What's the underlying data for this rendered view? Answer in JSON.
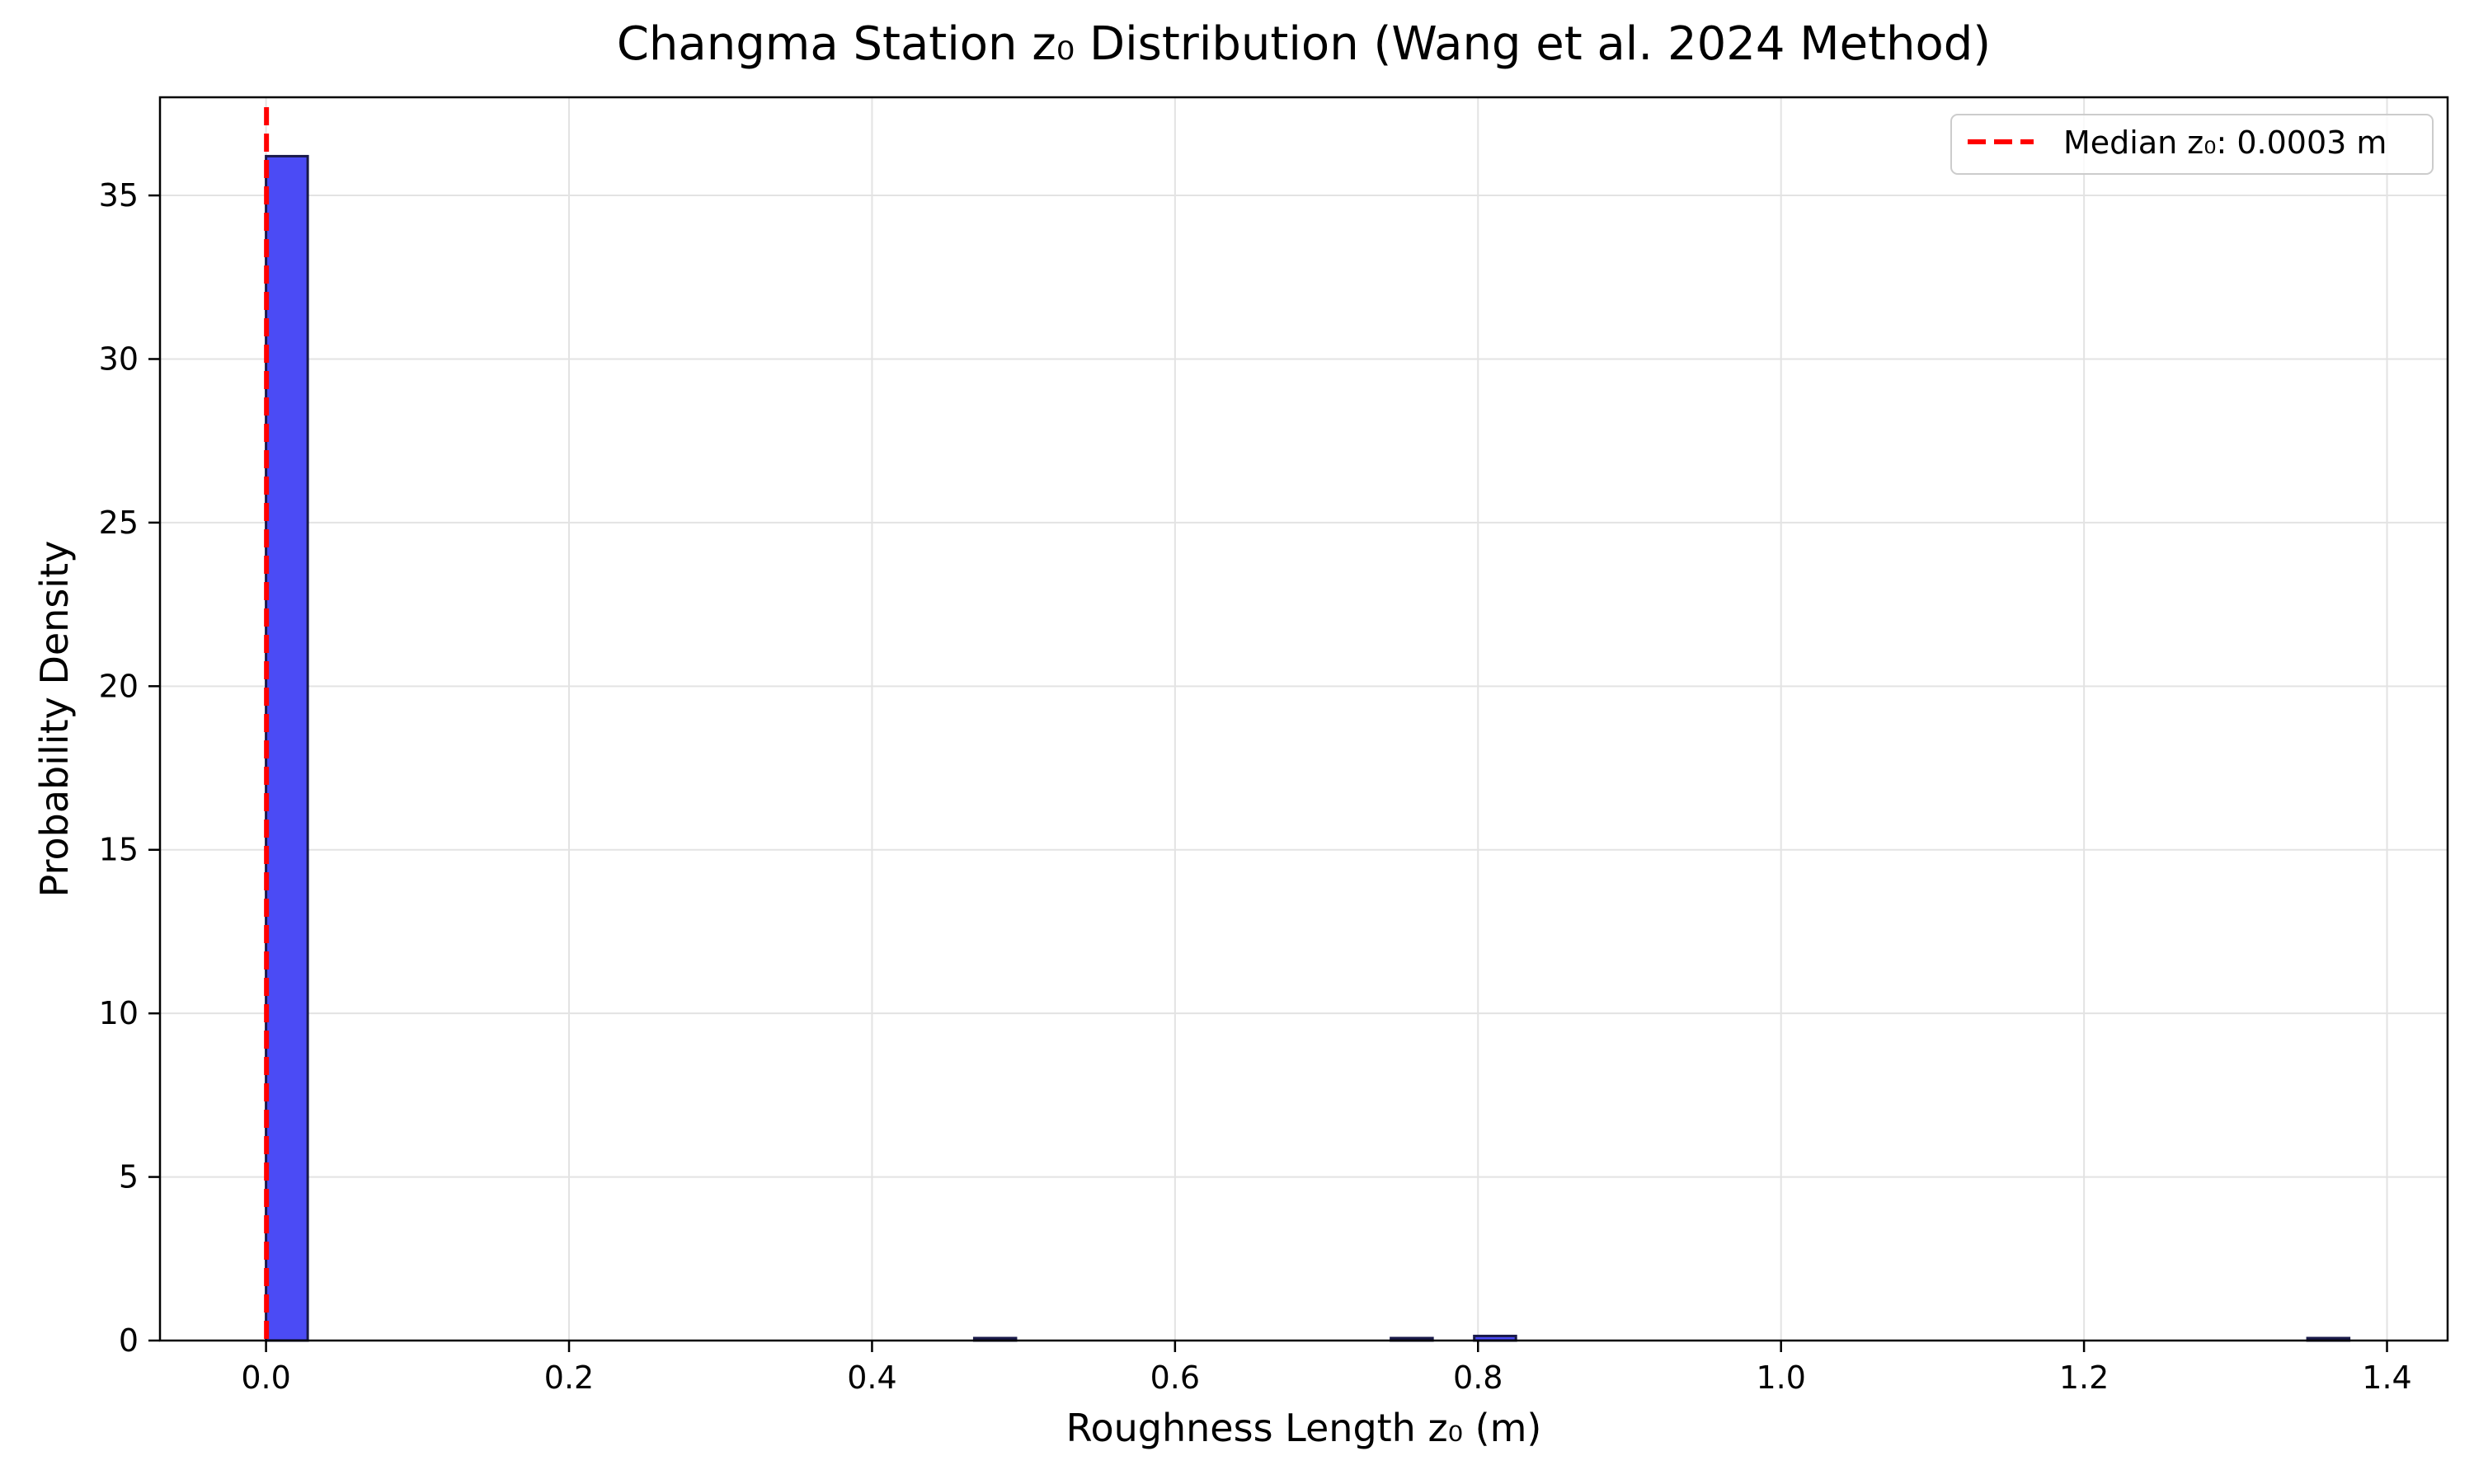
{
  "chart_data": {
    "type": "bar",
    "title": "Changma Station z₀ Distribution (Wang et al. 2024 Method)",
    "xlabel": "Roughness Length z₀ (m)",
    "ylabel": "Probability Density",
    "xlim": [
      -0.07,
      1.44
    ],
    "ylim": [
      0,
      38
    ],
    "x_ticks": [
      0.0,
      0.2,
      0.4,
      0.6,
      0.8,
      1.0,
      1.2,
      1.4
    ],
    "x_tick_labels": [
      "0.0",
      "0.2",
      "0.4",
      "0.6",
      "0.8",
      "1.0",
      "1.2",
      "1.4"
    ],
    "y_ticks": [
      0,
      5,
      10,
      15,
      20,
      25,
      30,
      35
    ],
    "y_tick_labels": [
      "0",
      "5",
      "10",
      "15",
      "20",
      "25",
      "30",
      "35"
    ],
    "grid": true,
    "bins": [
      {
        "x0": 0.0,
        "x1": 0.0275,
        "density": 36.2
      },
      {
        "x0": 0.4675,
        "x1": 0.495,
        "density": 0.07
      },
      {
        "x0": 0.7425,
        "x1": 0.77,
        "density": 0.07
      },
      {
        "x0": 0.7975,
        "x1": 0.825,
        "density": 0.14
      },
      {
        "x0": 1.3475,
        "x1": 1.375,
        "density": 0.07
      }
    ],
    "bar_color": "#4b4bf5",
    "bar_edge_color": "#1a1a4a",
    "median": {
      "value": 0.0003,
      "label": "Median z₀: 0.0003 m",
      "color": "#ff0000"
    },
    "legend": {
      "position": "top-right"
    }
  }
}
